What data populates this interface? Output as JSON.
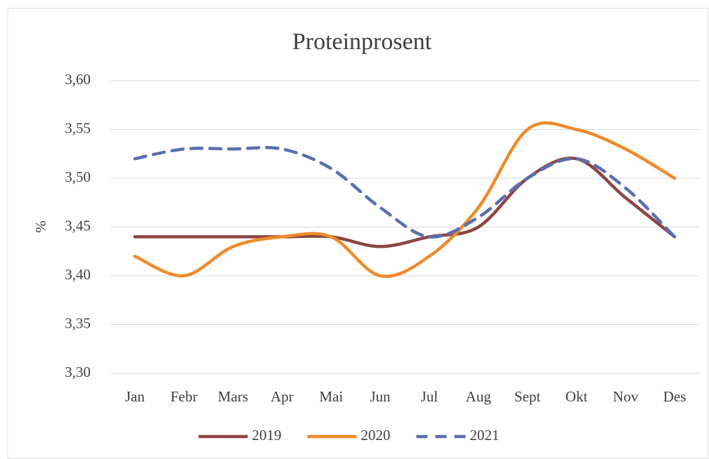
{
  "chart_data": {
    "type": "line",
    "title": "Proteinprosent",
    "y_label": "%",
    "categories": [
      "Jan",
      "Febr",
      "Mars",
      "Apr",
      "Mai",
      "Jun",
      "Jul",
      "Aug",
      "Sept",
      "Okt",
      "Nov",
      "Des"
    ],
    "series": [
      {
        "name": "2019",
        "color": "#8e4444",
        "dash": false,
        "values": [
          3.44,
          3.44,
          3.44,
          3.44,
          3.44,
          3.43,
          3.44,
          3.45,
          3.5,
          3.52,
          3.48,
          3.44
        ]
      },
      {
        "name": "2020",
        "color": "#ee8b2b",
        "dash": false,
        "values": [
          3.42,
          3.4,
          3.43,
          3.44,
          3.44,
          3.4,
          3.42,
          3.47,
          3.55,
          3.55,
          3.53,
          3.5
        ]
      },
      {
        "name": "2021",
        "color": "#5a6fb0",
        "dash": true,
        "values": [
          3.52,
          3.53,
          3.53,
          3.53,
          3.51,
          3.47,
          3.44,
          3.46,
          3.5,
          3.52,
          3.49,
          3.44
        ]
      }
    ],
    "ylim": [
      3.3,
      3.6
    ],
    "yticks": [
      {
        "value": 3.3,
        "label": "3,30"
      },
      {
        "value": 3.35,
        "label": "3,35"
      },
      {
        "value": 3.4,
        "label": "3,40"
      },
      {
        "value": 3.45,
        "label": "3,45"
      },
      {
        "value": 3.5,
        "label": "3,50"
      },
      {
        "value": 3.55,
        "label": "3,55"
      },
      {
        "value": 3.6,
        "label": "3,60"
      }
    ],
    "grid": true,
    "smooth": true,
    "legend": "bottom"
  }
}
